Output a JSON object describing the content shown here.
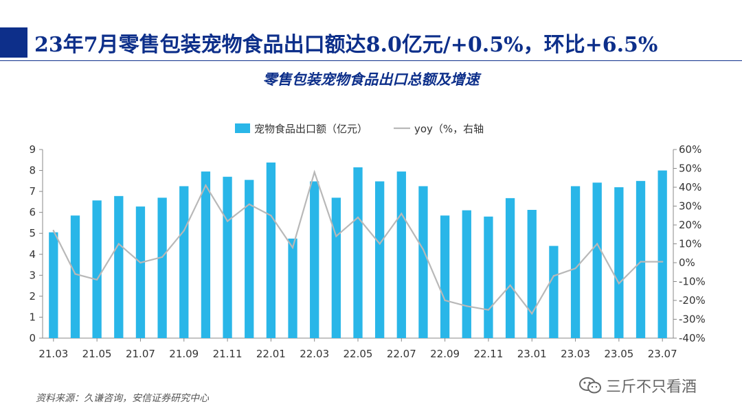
{
  "header": {
    "title": "23年7月零售包装宠物食品出口额达8.0亿元/+0.5%，环比+6.5%",
    "subtitle": "零售包装宠物食品出口总额及增速"
  },
  "source": "资料来源：久谦咨询，安信证券研究中心",
  "watermark": {
    "text": "三斤不只看酒",
    "icon": "wechat-icon"
  },
  "colors": {
    "bar": "#29b6e8",
    "line": "#b8b8b8",
    "title": "#0d2f8a",
    "axis": "#888888"
  },
  "chart_data": {
    "type": "bar",
    "title": "零售包装宠物食品出口总额及增速",
    "categories": [
      "21.03",
      "21.04",
      "21.05",
      "21.06",
      "21.07",
      "21.08",
      "21.09",
      "21.10",
      "21.11",
      "21.12",
      "22.01",
      "22.02",
      "22.03",
      "22.04",
      "22.05",
      "22.06",
      "22.07",
      "22.08",
      "22.09",
      "22.10",
      "22.11",
      "22.12",
      "23.01",
      "23.02",
      "23.03",
      "23.04",
      "23.05",
      "23.06",
      "23.07"
    ],
    "tick_labels": [
      "21.03",
      "21.05",
      "21.07",
      "21.09",
      "21.11",
      "22.01",
      "22.03",
      "22.05",
      "22.07",
      "22.09",
      "22.11",
      "23.01",
      "23.03",
      "23.05",
      "23.07"
    ],
    "series": [
      {
        "name": "宠物食品出口额（亿元）",
        "axis": "left",
        "type": "bar",
        "values": [
          5.05,
          5.85,
          6.57,
          6.78,
          6.28,
          6.7,
          7.25,
          7.95,
          7.7,
          7.55,
          8.38,
          4.75,
          7.48,
          6.7,
          8.15,
          7.48,
          7.95,
          7.25,
          5.85,
          6.1,
          5.8,
          6.68,
          6.12,
          4.4,
          7.25,
          7.42,
          7.2,
          7.5,
          8.0
        ]
      },
      {
        "name": "yoy（%，右轴",
        "axis": "right",
        "type": "line",
        "values": [
          17,
          -6,
          -9,
          10,
          0,
          3,
          17,
          41,
          22,
          31,
          25,
          8,
          48,
          14,
          24,
          10,
          26,
          7,
          -20,
          -23,
          -25,
          -12,
          -27,
          -7,
          -3,
          10,
          -11,
          0.5,
          0.5
        ]
      }
    ],
    "ylim_left": [
      0,
      9
    ],
    "yticks_left": [
      "0",
      "1",
      "2",
      "3",
      "4",
      "5",
      "6",
      "7",
      "8",
      "9"
    ],
    "ylim_right": [
      -40,
      60
    ],
    "yticks_right": [
      "-40%",
      "-30%",
      "-20%",
      "-10%",
      "0%",
      "10%",
      "20%",
      "30%",
      "40%",
      "50%",
      "60%"
    ],
    "legend": {
      "position": "top-center",
      "items": [
        "宠物食品出口额（亿元）",
        "yoy（%，右轴"
      ]
    }
  }
}
